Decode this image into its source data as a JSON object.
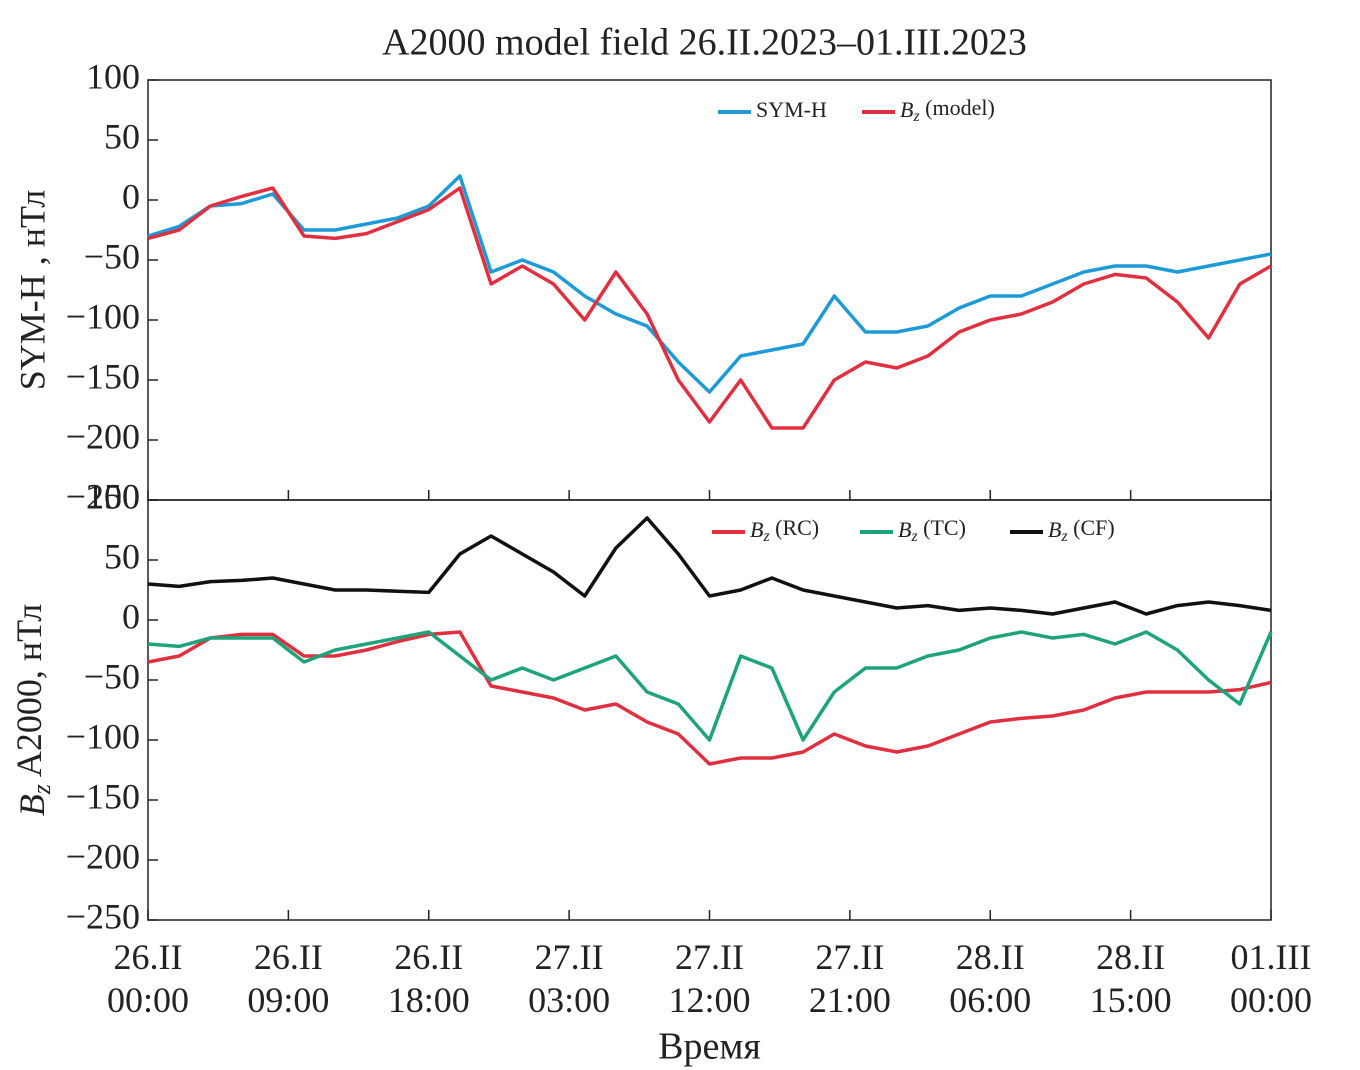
{
  "chart_data": [
    {
      "type": "line",
      "title": "A2000 model field 26.II.2023–01.III.2023",
      "ylabel": "SYM-H , нТл",
      "x": [
        0,
        2,
        4,
        6,
        8,
        10,
        12,
        14,
        16,
        18,
        20,
        22,
        24,
        26,
        28,
        30,
        32,
        34,
        36,
        38,
        40,
        42,
        44,
        46,
        48,
        50,
        52,
        54,
        56,
        58,
        60,
        62,
        64,
        66,
        68,
        70,
        72
      ],
      "xlim": [
        0,
        72
      ],
      "xticks": [
        0,
        9,
        18,
        27,
        36,
        45,
        54,
        63,
        72
      ],
      "ylim": [
        -250,
        100
      ],
      "yticks": [
        {
          "value": -250,
          "label": "−250"
        },
        {
          "value": -200,
          "label": "−200"
        },
        {
          "value": -150,
          "label": "−150"
        },
        {
          "value": -100,
          "label": "−100"
        },
        {
          "value": -50,
          "label": "−50"
        },
        0,
        50,
        100
      ],
      "legend": "upper right",
      "series": [
        {
          "name": "SYM-H",
          "color": "#1e9ad6",
          "values": [
            -30,
            -22,
            -5,
            -3,
            5,
            -25,
            -25,
            -20,
            -15,
            -5,
            20,
            -60,
            -50,
            -60,
            -80,
            -95,
            -105,
            -135,
            -160,
            -130,
            -125,
            -120,
            -80,
            -110,
            -110,
            -105,
            -90,
            -80,
            -80,
            -70,
            -60,
            -55,
            -55,
            -60,
            -55,
            -50,
            -45
          ]
        },
        {
          "name": "Bz (model)",
          "color": "#e0303f",
          "values": [
            -32,
            -25,
            -5,
            3,
            10,
            -30,
            -32,
            -28,
            -18,
            -8,
            10,
            -70,
            -55,
            -70,
            -100,
            -60,
            -95,
            -150,
            -185,
            -150,
            -190,
            -190,
            -150,
            -135,
            -140,
            -130,
            -110,
            -100,
            -95,
            -85,
            -70,
            -62,
            -65,
            -85,
            -115,
            -70,
            -55
          ]
        }
      ]
    },
    {
      "type": "line",
      "ylabel": "Bz A2000, нТл",
      "xlabel": "Время",
      "x": [
        0,
        2,
        4,
        6,
        8,
        10,
        12,
        14,
        16,
        18,
        20,
        22,
        24,
        26,
        28,
        30,
        32,
        34,
        36,
        38,
        40,
        42,
        44,
        46,
        48,
        50,
        52,
        54,
        56,
        58,
        60,
        62,
        64,
        66,
        68,
        70,
        72
      ],
      "xlim": [
        0,
        72
      ],
      "xticks": [
        {
          "value": 0,
          "label": "26.II\n00:00"
        },
        {
          "value": 9,
          "label": "26.II\n09:00"
        },
        {
          "value": 18,
          "label": "26.II\n18:00"
        },
        {
          "value": 27,
          "label": "27.II\n03:00"
        },
        {
          "value": 36,
          "label": "27.II\n12:00"
        },
        {
          "value": 45,
          "label": "27.II\n21:00"
        },
        {
          "value": 54,
          "label": "28.II\n06:00"
        },
        {
          "value": 63,
          "label": "28.II\n15:00"
        },
        {
          "value": 72,
          "label": "01.III\n00:00"
        }
      ],
      "ylim": [
        -250,
        100
      ],
      "yticks": [
        {
          "value": -250,
          "label": "−250"
        },
        {
          "value": -200,
          "label": "−200"
        },
        {
          "value": -150,
          "label": "−150"
        },
        {
          "value": -100,
          "label": "−100"
        },
        {
          "value": -50,
          "label": "−50"
        },
        0,
        50,
        100
      ],
      "legend": "upper right",
      "series": [
        {
          "name": "Bz (RC)",
          "color": "#e0303f",
          "values": [
            -35,
            -30,
            -15,
            -12,
            -12,
            -30,
            -30,
            -25,
            -18,
            -12,
            -10,
            -55,
            -60,
            -65,
            -75,
            -70,
            -85,
            -95,
            -120,
            -115,
            -115,
            -110,
            -95,
            -105,
            -110,
            -105,
            -95,
            -85,
            -82,
            -80,
            -75,
            -65,
            -60,
            -60,
            -60,
            -58,
            -52
          ]
        },
        {
          "name": "Bz (TC)",
          "color": "#1fa37a",
          "values": [
            -20,
            -22,
            -15,
            -15,
            -15,
            -35,
            -25,
            -20,
            -15,
            -10,
            -30,
            -50,
            -40,
            -50,
            -40,
            -30,
            -60,
            -70,
            -100,
            -30,
            -40,
            -100,
            -60,
            -40,
            -40,
            -30,
            -25,
            -15,
            -10,
            -15,
            -12,
            -20,
            -10,
            -25,
            -50,
            -70,
            -10
          ]
        },
        {
          "name": "Bz (CF)",
          "color": "#111111",
          "values": [
            30,
            28,
            32,
            33,
            35,
            30,
            25,
            25,
            24,
            23,
            55,
            70,
            55,
            40,
            20,
            60,
            85,
            55,
            20,
            25,
            35,
            25,
            20,
            15,
            10,
            12,
            8,
            10,
            8,
            5,
            10,
            15,
            5,
            12,
            15,
            12,
            8
          ]
        }
      ]
    }
  ]
}
